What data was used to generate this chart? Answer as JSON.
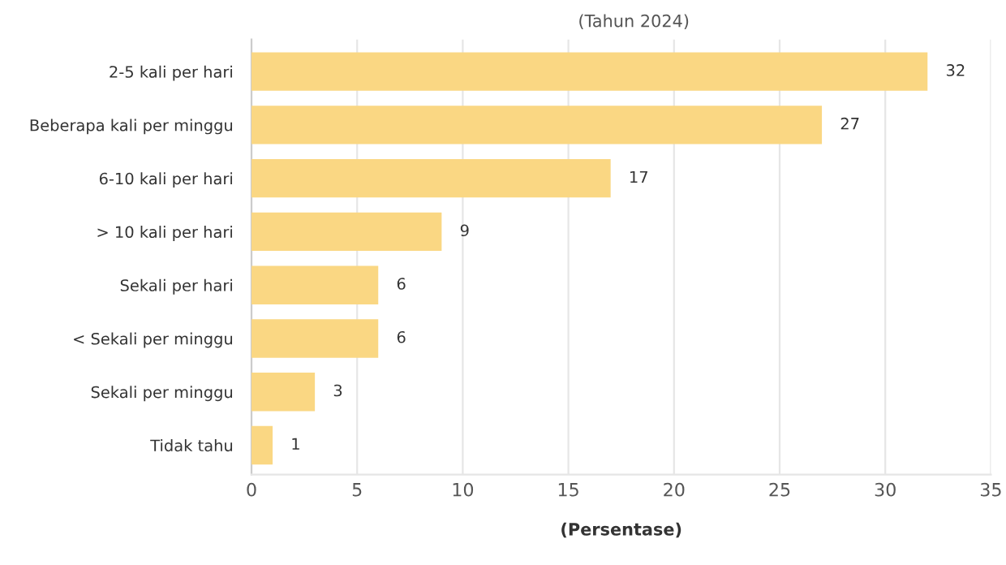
{
  "chart_data": {
    "type": "bar",
    "orientation": "horizontal",
    "subtitle": "(Tahun 2024)",
    "xlabel": "(Persentase)",
    "categories": [
      "2-5 kali per hari",
      "Beberapa kali per minggu",
      "6-10 kali per hari",
      "> 10 kali per hari",
      "Sekali per hari",
      "< Sekali per minggu",
      "Sekali per minggu",
      "Tidak tahu"
    ],
    "values": [
      32,
      27,
      17,
      9,
      6,
      6,
      3,
      1
    ],
    "color": "#fad783",
    "xlim": [
      0,
      35
    ],
    "xticks": [
      0,
      5,
      10,
      15,
      20,
      25,
      30,
      35
    ],
    "grid": "x",
    "data_labels": true
  }
}
